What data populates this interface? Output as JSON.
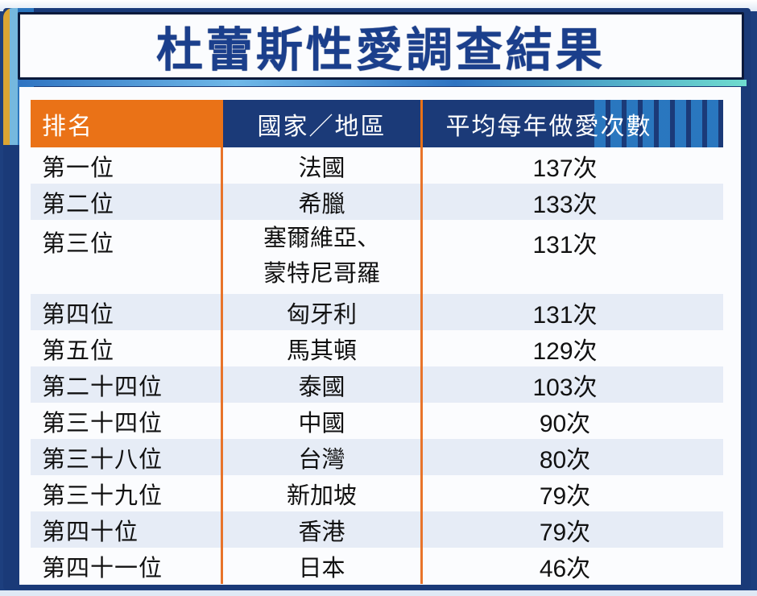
{
  "title": "杜蕾斯性愛調查結果",
  "table": {
    "headers": [
      "排名",
      "國家／地區",
      "平均每年做愛次數"
    ],
    "rows": [
      {
        "rank": "第一位",
        "country": "法國",
        "count": "137次"
      },
      {
        "rank": "第二位",
        "country": "希臘",
        "count": "133次"
      },
      {
        "rank": "第三位",
        "country_line1": "塞爾維亞、",
        "country_line2": "蒙特尼哥羅",
        "count": "131次"
      },
      {
        "rank": "第四位",
        "country": "匈牙利",
        "count": "131次"
      },
      {
        "rank": "第五位",
        "country": "馬其頓",
        "count": "129次"
      },
      {
        "rank": "第二十四位",
        "country": "泰國",
        "count": "103次"
      },
      {
        "rank": "第三十四位",
        "country": "中國",
        "count": "90次"
      },
      {
        "rank": "第三十八位",
        "country": "台灣",
        "count": "80次"
      },
      {
        "rank": "第三十九位",
        "country": "新加坡",
        "count": "79次"
      },
      {
        "rank": "第四十位",
        "country": "香港",
        "count": "79次"
      },
      {
        "rank": "第四十一位",
        "country": "日本",
        "count": "46次"
      }
    ]
  },
  "colors": {
    "title_text": "#1b3f8c",
    "header_rank_bg": "#ea7217",
    "header_bg": "#1b3a78",
    "frame": "#1a3a78",
    "row_alt": "#e6ecf6",
    "divider": "#e8742a"
  }
}
